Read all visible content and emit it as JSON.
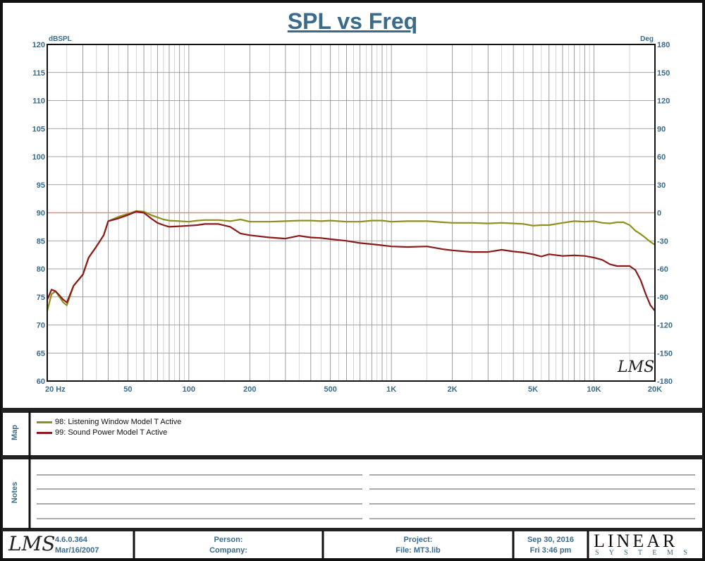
{
  "title": "SPL vs Freq",
  "y_left_unit": "dBSPL",
  "y_right_unit": "Deg",
  "y_left_ticks": [
    "120",
    "115",
    "110",
    "105",
    "100",
    "95",
    "90",
    "85",
    "80",
    "75",
    "70",
    "65",
    "60"
  ],
  "y_right_ticks": [
    "180",
    "150",
    "120",
    "90",
    "60",
    "30",
    "0",
    "-30",
    "-60",
    "-90",
    "-120",
    "-150",
    "-180"
  ],
  "x_tick_labels": [
    "20 Hz",
    "50",
    "100",
    "200",
    "500",
    "1K",
    "2K",
    "5K",
    "10K",
    "20K"
  ],
  "map_label": "Map",
  "notes_label": "Notes",
  "legend": [
    {
      "label": "98: Listening Window Model T Active",
      "color": "#8f8f20"
    },
    {
      "label": "99: Sound Power Model T Active",
      "color": "#8b1a1a"
    }
  ],
  "footer": {
    "version": "4.6.0.364",
    "build_date": "Mar/16/2007",
    "person": "Person:",
    "company": "Company:",
    "project": "Project:",
    "file": "File: MT3.lib",
    "date": "Sep 30, 2016",
    "time": "Fri  3:46 pm",
    "brand_top": "LINEAR",
    "brand_bottom": "S Y S T E M S"
  },
  "lms_mark": "LMS",
  "chart_data": {
    "type": "line",
    "title": "SPL vs Freq",
    "xlabel": "",
    "ylabel": "dBSPL",
    "y2label": "Deg",
    "x_scale": "log",
    "xlim": [
      20,
      20000
    ],
    "ylim": [
      60,
      120
    ],
    "y2lim": [
      -180,
      180
    ],
    "reference_line_db": 90,
    "grid": true,
    "legend_position": "bottom",
    "series": [
      {
        "name": "98: Listening Window Model T Active",
        "color": "#8f8f20",
        "points": [
          [
            20,
            72.5
          ],
          [
            21,
            75.5
          ],
          [
            22,
            76
          ],
          [
            24,
            74
          ],
          [
            25,
            73.5
          ],
          [
            27,
            77
          ],
          [
            30,
            79
          ],
          [
            32,
            82
          ],
          [
            35,
            84
          ],
          [
            38,
            86
          ],
          [
            40,
            88.5
          ],
          [
            45,
            89.3
          ],
          [
            50,
            89.8
          ],
          [
            55,
            90.3
          ],
          [
            60,
            90.2
          ],
          [
            65,
            89.6
          ],
          [
            70,
            89.2
          ],
          [
            75,
            88.8
          ],
          [
            80,
            88.6
          ],
          [
            90,
            88.5
          ],
          [
            100,
            88.4
          ],
          [
            110,
            88.6
          ],
          [
            120,
            88.7
          ],
          [
            140,
            88.7
          ],
          [
            160,
            88.5
          ],
          [
            180,
            88.8
          ],
          [
            200,
            88.4
          ],
          [
            250,
            88.4
          ],
          [
            300,
            88.5
          ],
          [
            350,
            88.6
          ],
          [
            400,
            88.6
          ],
          [
            450,
            88.5
          ],
          [
            500,
            88.6
          ],
          [
            600,
            88.4
          ],
          [
            700,
            88.4
          ],
          [
            800,
            88.6
          ],
          [
            900,
            88.6
          ],
          [
            1000,
            88.4
          ],
          [
            1200,
            88.5
          ],
          [
            1500,
            88.5
          ],
          [
            1800,
            88.3
          ],
          [
            2000,
            88.2
          ],
          [
            2500,
            88.2
          ],
          [
            3000,
            88.1
          ],
          [
            3500,
            88.2
          ],
          [
            4000,
            88.1
          ],
          [
            4500,
            88.0
          ],
          [
            5000,
            87.7
          ],
          [
            5500,
            87.8
          ],
          [
            6000,
            87.8
          ],
          [
            7000,
            88.2
          ],
          [
            8000,
            88.5
          ],
          [
            9000,
            88.4
          ],
          [
            10000,
            88.5
          ],
          [
            11000,
            88.2
          ],
          [
            12000,
            88.1
          ],
          [
            13000,
            88.3
          ],
          [
            14000,
            88.3
          ],
          [
            15000,
            87.8
          ],
          [
            16000,
            86.8
          ],
          [
            17000,
            86.2
          ],
          [
            18000,
            85.5
          ],
          [
            19000,
            84.8
          ],
          [
            20000,
            84.3
          ]
        ]
      },
      {
        "name": "99: Sound Power Model T Active",
        "color": "#8b1a1a",
        "points": [
          [
            20,
            74.5
          ],
          [
            21,
            76.3
          ],
          [
            22,
            76
          ],
          [
            24,
            74.5
          ],
          [
            25,
            74
          ],
          [
            27,
            77
          ],
          [
            30,
            79
          ],
          [
            32,
            82
          ],
          [
            35,
            84
          ],
          [
            38,
            86
          ],
          [
            40,
            88.5
          ],
          [
            45,
            89
          ],
          [
            50,
            89.6
          ],
          [
            55,
            90.2
          ],
          [
            60,
            90
          ],
          [
            65,
            89
          ],
          [
            70,
            88.2
          ],
          [
            75,
            87.8
          ],
          [
            80,
            87.5
          ],
          [
            90,
            87.6
          ],
          [
            100,
            87.7
          ],
          [
            110,
            87.8
          ],
          [
            120,
            88
          ],
          [
            140,
            88
          ],
          [
            160,
            87.5
          ],
          [
            180,
            86.3
          ],
          [
            200,
            86
          ],
          [
            250,
            85.6
          ],
          [
            300,
            85.4
          ],
          [
            350,
            85.9
          ],
          [
            400,
            85.6
          ],
          [
            450,
            85.5
          ],
          [
            500,
            85.3
          ],
          [
            600,
            85
          ],
          [
            700,
            84.6
          ],
          [
            800,
            84.4
          ],
          [
            900,
            84.2
          ],
          [
            1000,
            84
          ],
          [
            1200,
            83.9
          ],
          [
            1500,
            84
          ],
          [
            1800,
            83.5
          ],
          [
            2000,
            83.3
          ],
          [
            2500,
            83
          ],
          [
            3000,
            83
          ],
          [
            3500,
            83.4
          ],
          [
            4000,
            83.1
          ],
          [
            4500,
            82.9
          ],
          [
            5000,
            82.6
          ],
          [
            5500,
            82.2
          ],
          [
            6000,
            82.6
          ],
          [
            7000,
            82.3
          ],
          [
            8000,
            82.4
          ],
          [
            9000,
            82.3
          ],
          [
            10000,
            82
          ],
          [
            11000,
            81.6
          ],
          [
            12000,
            80.8
          ],
          [
            13000,
            80.5
          ],
          [
            14000,
            80.5
          ],
          [
            15000,
            80.5
          ],
          [
            16000,
            79.8
          ],
          [
            17000,
            78
          ],
          [
            18000,
            75.5
          ],
          [
            19000,
            73.5
          ],
          [
            20000,
            72.5
          ]
        ]
      }
    ]
  }
}
